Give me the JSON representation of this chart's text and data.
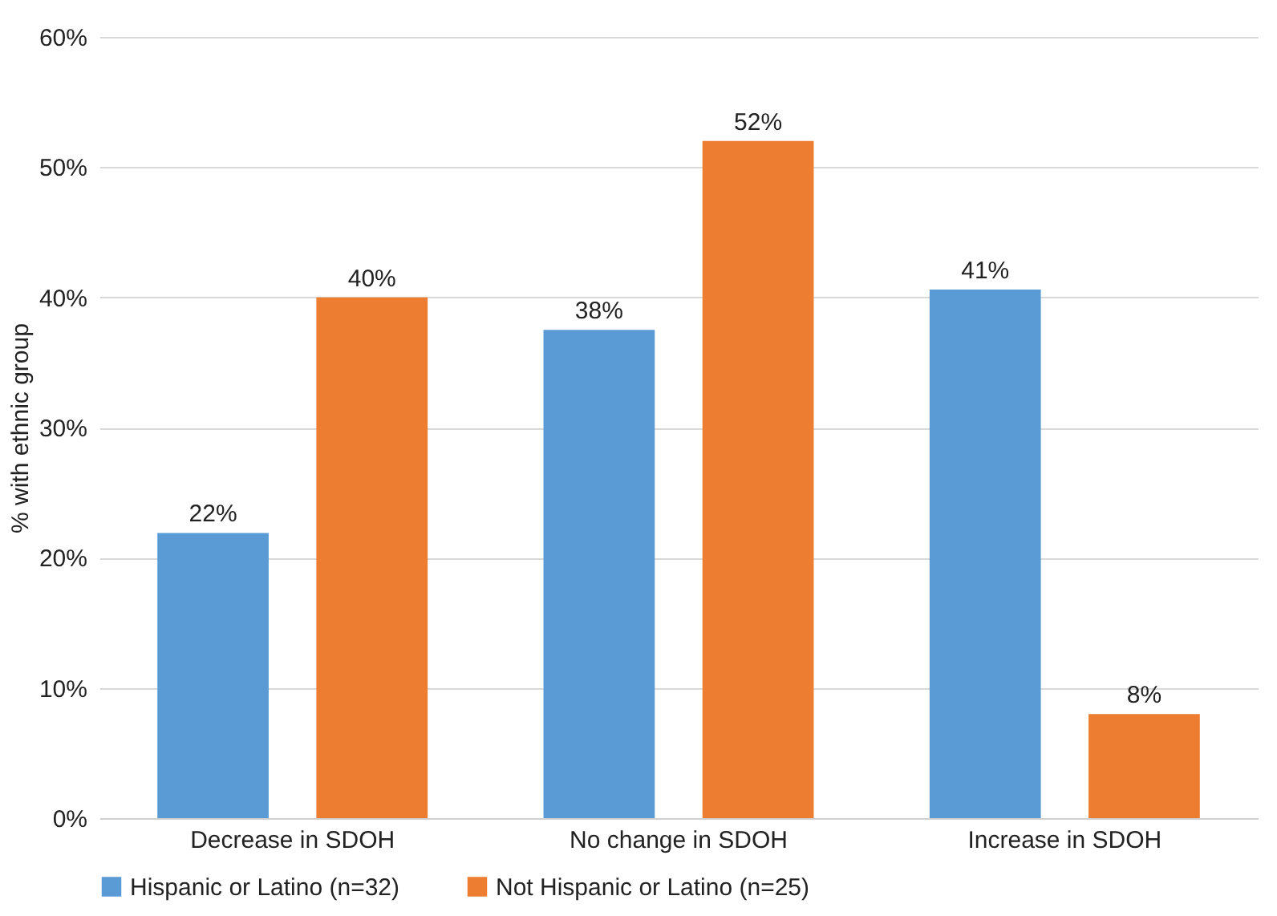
{
  "chart_data": {
    "type": "bar",
    "ylabel": "% with ethnic group",
    "categories": [
      "Decrease in SDOH",
      "No change in SDOH",
      "Increase in SDOH"
    ],
    "series": [
      {
        "name": "Hispanic or Latino (n=32)",
        "color": "#5b9bd5",
        "values": [
          21.9,
          37.5,
          40.6
        ],
        "value_labels": [
          "22%",
          "38%",
          "41%"
        ]
      },
      {
        "name": "Not Hispanic or Latino (n=25)",
        "color": "#ed7d31",
        "values": [
          40,
          52,
          8
        ],
        "value_labels": [
          "40%",
          "52%",
          "8%"
        ]
      }
    ],
    "ylim": [
      0,
      60
    ],
    "yticks": [
      {
        "value": 0,
        "label": "0%"
      },
      {
        "value": 10,
        "label": "10%"
      },
      {
        "value": 20,
        "label": "20%"
      },
      {
        "value": 30,
        "label": "30%"
      },
      {
        "value": 40,
        "label": "40%"
      },
      {
        "value": 50,
        "label": "50%"
      },
      {
        "value": 60,
        "label": "60%"
      }
    ],
    "grid": "y",
    "legend": "bottom"
  }
}
